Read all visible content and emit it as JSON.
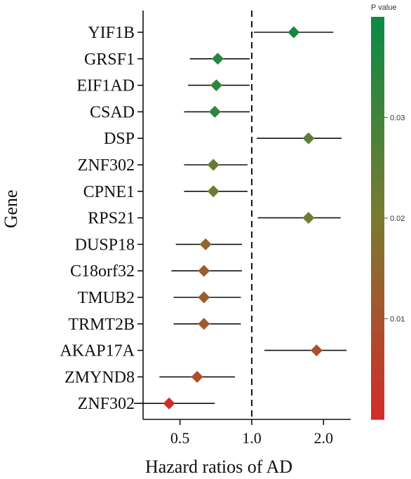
{
  "chart_data": {
    "type": "forest",
    "xlabel": "Hazard ratios of AD",
    "ylabel": "Gene",
    "x_scale": "log2",
    "xlim": [
      0.35,
      2.6
    ],
    "x_ticks": [
      0.5,
      1.0,
      2.0
    ],
    "x_tick_labels": [
      "0.5",
      "1.0",
      "2.0"
    ],
    "reference_line": 1.0,
    "genes": [
      "YIF1B",
      "GRSF1",
      "EIF1AD",
      "CSAD",
      "DSP",
      "ZNF302",
      "CPNE1",
      "RPS21",
      "DUSP18",
      "C18orf32",
      "TMUB2",
      "TRMT2B",
      "AKAP17A",
      "ZMYND8",
      "ZNF302"
    ],
    "hr": [
      1.5,
      0.72,
      0.71,
      0.7,
      1.73,
      0.69,
      0.69,
      1.73,
      0.64,
      0.63,
      0.63,
      0.63,
      1.87,
      0.59,
      0.45
    ],
    "ci_low": [
      1.02,
      0.55,
      0.54,
      0.52,
      1.05,
      0.52,
      0.52,
      1.06,
      0.48,
      0.46,
      0.47,
      0.47,
      1.13,
      0.41,
      0.32
    ],
    "ci_high": [
      2.2,
      0.98,
      0.98,
      0.98,
      2.38,
      0.96,
      0.96,
      2.36,
      0.91,
      0.91,
      0.9,
      0.9,
      2.5,
      0.85,
      0.7
    ],
    "p_value": [
      0.038,
      0.034,
      0.033,
      0.033,
      0.025,
      0.024,
      0.023,
      0.022,
      0.015,
      0.013,
      0.013,
      0.012,
      0.01,
      0.009,
      0.001
    ],
    "colorbar": {
      "title": "P value",
      "ticks": [
        0.01,
        0.02,
        0.03
      ],
      "tick_labels": [
        "0.01",
        "0.02",
        "0.03"
      ],
      "range": [
        0.0,
        0.04
      ],
      "color_low": "#d42a2a",
      "color_mid": "#7a7a30",
      "color_high": "#0a8a45"
    }
  }
}
